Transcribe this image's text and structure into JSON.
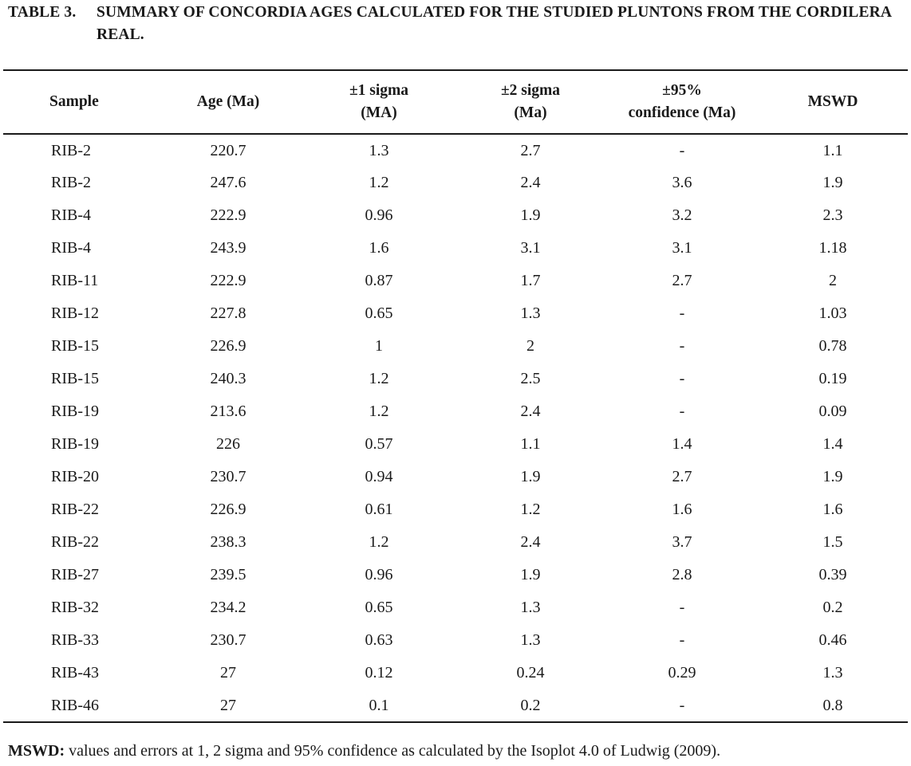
{
  "caption": {
    "label": "TABLE 3.",
    "text": "SUMMARY OF CONCORDIA AGES CALCULATED FOR THE STUDIED PLUNTONS FROM THE CORDILERA REAL."
  },
  "columns": [
    {
      "line1": "Sample",
      "line2": ""
    },
    {
      "line1": "Age (Ma)",
      "line2": ""
    },
    {
      "line1": "±1 sigma",
      "line2": "(MA)"
    },
    {
      "line1": "±2 sigma",
      "line2": "(Ma)"
    },
    {
      "line1": "±95%",
      "line2": "confidence (Ma)"
    },
    {
      "line1": "MSWD",
      "line2": ""
    }
  ],
  "rows": [
    [
      "RIB-2",
      "220.7",
      "1.3",
      "2.7",
      "-",
      "1.1"
    ],
    [
      "RIB-2",
      "247.6",
      "1.2",
      "2.4",
      "3.6",
      "1.9"
    ],
    [
      "RIB-4",
      "222.9",
      "0.96",
      "1.9",
      "3.2",
      "2.3"
    ],
    [
      "RIB-4",
      "243.9",
      "1.6",
      "3.1",
      "3.1",
      "1.18"
    ],
    [
      "RIB-11",
      "222.9",
      "0.87",
      "1.7",
      "2.7",
      "2"
    ],
    [
      "RIB-12",
      "227.8",
      "0.65",
      "1.3",
      "-",
      "1.03"
    ],
    [
      "RIB-15",
      "226.9",
      "1",
      "2",
      "-",
      "0.78"
    ],
    [
      "RIB-15",
      "240.3",
      "1.2",
      "2.5",
      "-",
      "0.19"
    ],
    [
      "RIB-19",
      "213.6",
      "1.2",
      "2.4",
      "-",
      "0.09"
    ],
    [
      "RIB-19",
      "226",
      "0.57",
      "1.1",
      "1.4",
      "1.4"
    ],
    [
      "RIB-20",
      "230.7",
      "0.94",
      "1.9",
      "2.7",
      "1.9"
    ],
    [
      "RIB-22",
      "226.9",
      "0.61",
      "1.2",
      "1.6",
      "1.6"
    ],
    [
      "RIB-22",
      "238.3",
      "1.2",
      "2.4",
      "3.7",
      "1.5"
    ],
    [
      "RIB-27",
      "239.5",
      "0.96",
      "1.9",
      "2.8",
      "0.39"
    ],
    [
      "RIB-32",
      "234.2",
      "0.65",
      "1.3",
      "-",
      "0.2"
    ],
    [
      "RIB-33",
      "230.7",
      "0.63",
      "1.3",
      "-",
      "0.46"
    ],
    [
      "RIB-43",
      "27",
      "0.12",
      "0.24",
      "0.29",
      "1.3"
    ],
    [
      "RIB-46",
      "27",
      "0.1",
      "0.2",
      "-",
      "0.8"
    ]
  ],
  "footnote": {
    "term": "MSWD:",
    "text": " values and errors at 1, 2 sigma and 95% confidence as calculated by the Isoplot 4.0 of Ludwig (2009)."
  }
}
